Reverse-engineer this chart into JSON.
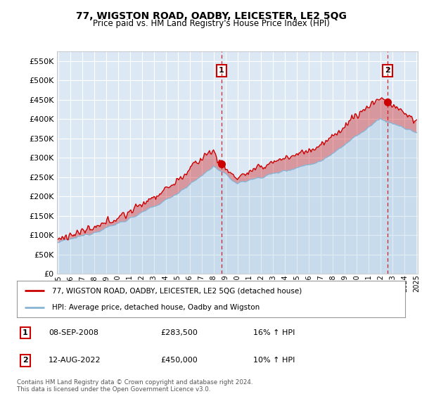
{
  "title": "77, WIGSTON ROAD, OADBY, LEICESTER, LE2 5QG",
  "subtitle": "Price paid vs. HM Land Registry's House Price Index (HPI)",
  "hpi_label": "HPI: Average price, detached house, Oadby and Wigston",
  "price_label": "77, WIGSTON ROAD, OADBY, LEICESTER, LE2 5QG (detached house)",
  "footer": "Contains HM Land Registry data © Crown copyright and database right 2024.\nThis data is licensed under the Open Government Licence v3.0.",
  "sale1_date": "08-SEP-2008",
  "sale1_price": 283500,
  "sale1_hpi": "16% ↑ HPI",
  "sale1_label": "1",
  "sale2_date": "12-AUG-2022",
  "sale2_price": 450000,
  "sale2_hpi": "10% ↑ HPI",
  "sale2_label": "2",
  "ylim": [
    0,
    575000
  ],
  "yticks": [
    0,
    50000,
    100000,
    150000,
    200000,
    250000,
    300000,
    350000,
    400000,
    450000,
    500000,
    550000
  ],
  "background_color": "#dce9f5",
  "line_color_price": "#cc0000",
  "line_color_hpi": "#8ab4d4",
  "grid_color": "#ffffff",
  "sale_line_color": "#cc0000",
  "box_color": "#cc0000",
  "start_year": 1995,
  "end_year": 2025
}
